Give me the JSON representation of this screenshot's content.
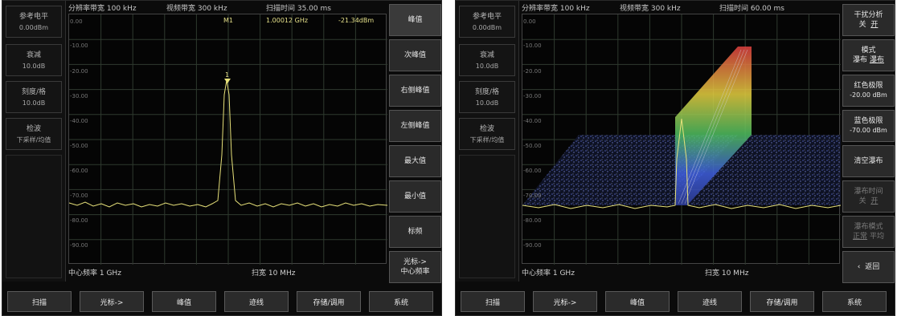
{
  "left": {
    "side": [
      {
        "label": "参考电平",
        "value": "0.00dBm"
      },
      {
        "label": "衰减",
        "value": "10.0dB"
      },
      {
        "label": "刻度/格",
        "value": "10.0dB"
      },
      {
        "label": "检波",
        "value": "下采样/均值"
      }
    ],
    "top": {
      "rbw": "分辨率带宽 100 kHz",
      "vbw": "视频带宽 300 kHz",
      "sweep": "扫描时间 35.00 ms"
    },
    "marker": {
      "name": "M1",
      "freq": "1.00012 GHz",
      "level": "-21.34dBm",
      "tag": "1"
    },
    "ylabels": [
      "0.00",
      "-10.00",
      "-20.00",
      "-30.00",
      "-40.00",
      "-50.00",
      "-60.00",
      "-70.00",
      "-80.00",
      "-90.00"
    ],
    "bottom": {
      "center": "中心频率 1 GHz",
      "span": "扫宽 10 MHz"
    },
    "right_buttons": [
      "峰值",
      "次峰值",
      "右侧峰值",
      "左侧峰值",
      "最大值",
      "最小值",
      "标频",
      "光标->\n中心频率"
    ]
  },
  "right": {
    "side": [
      {
        "label": "参考电平",
        "value": "0.00dBm"
      },
      {
        "label": "衰减",
        "value": "10.0dB"
      },
      {
        "label": "刻度/格",
        "value": "10.0dB"
      },
      {
        "label": "检波",
        "value": "下采样/均值"
      }
    ],
    "top": {
      "rbw": "分辨率带宽 100 kHz",
      "vbw": "视频带宽 300 kHz",
      "sweep": "扫描时间 60.00 ms"
    },
    "ylabels": [
      "0.00",
      "-10.00",
      "-20.00",
      "-30.00",
      "-40.00",
      "-50.00",
      "-60.00",
      "-70.00",
      "-80.00",
      "-90.00"
    ],
    "bottom": {
      "center": "中心频率 1 GHz",
      "span": "扫宽 10 MHz"
    },
    "right_buttons": [
      {
        "title": "干扰分析",
        "a": "关",
        "b": "开",
        "dim": false
      },
      {
        "title": "模式",
        "a": "瀑布",
        "b": "瀑布",
        "dim": false
      },
      {
        "title": "红色极限",
        "a": "-20.00 dBm",
        "b": "",
        "dim": false
      },
      {
        "title": "蓝色极限",
        "a": "-70.00 dBm",
        "b": "",
        "dim": false
      },
      {
        "title": "清空瀑布",
        "a": "",
        "b": "",
        "dim": false
      },
      {
        "title": "瀑布时间",
        "a": "关",
        "b": "开",
        "dim": true
      },
      {
        "title": "瀑布模式",
        "a": "正常",
        "b": "平均",
        "dim": true
      },
      {
        "title": "返回",
        "a": "",
        "b": "",
        "dim": false
      }
    ]
  },
  "softkeys": [
    "扫描",
    "光标->",
    "峰值",
    "迹线",
    "存储/调用",
    "系统"
  ],
  "colors": {
    "trace": "#e8e27a",
    "grid": "#2f3a2f",
    "panel": "#0b0b0b",
    "button": "#2b2b2b"
  }
}
